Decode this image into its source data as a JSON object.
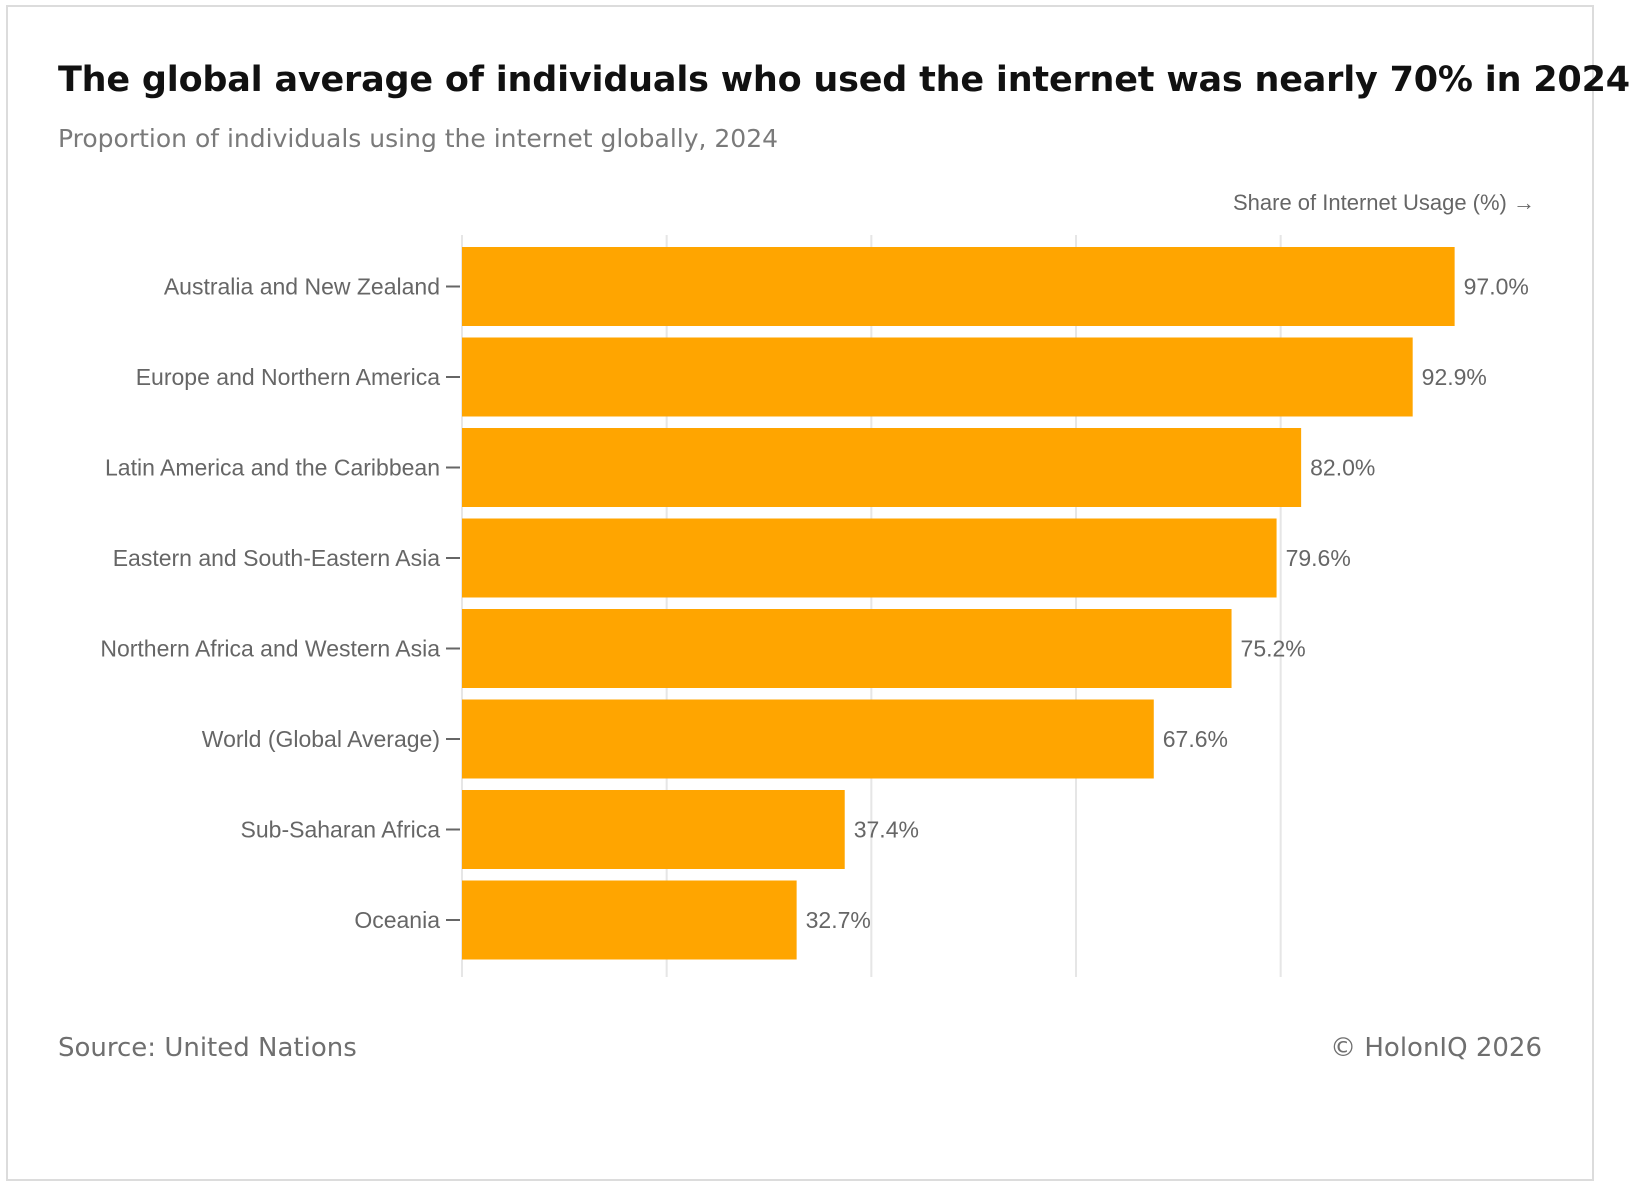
{
  "title": "The global average of individuals who used the internet was nearly 70% in 2024",
  "subtitle": "Proportion of individuals using the internet globally, 2024",
  "source": "Source: United Nations",
  "copyright": "© HolonIQ 2026",
  "colors": {
    "bar": "#FFA500",
    "grid": "#e6e6e6",
    "label": "#666666",
    "tick": "#666666"
  },
  "chart_data": {
    "type": "bar",
    "orientation": "horizontal",
    "xlabel": "Share of Internet Usage (%) →",
    "xlim": [
      0,
      120
    ],
    "grid": true,
    "categories": [
      "Australia and New Zealand",
      "Europe and Northern America",
      "Latin America and the Caribbean",
      "Eastern and South-Eastern Asia",
      "Northern Africa and Western Asia",
      "World (Global Average)",
      "Sub-Saharan Africa",
      "Oceania"
    ],
    "values": [
      97.0,
      92.9,
      82.0,
      79.6,
      75.2,
      67.6,
      37.4,
      32.7
    ],
    "value_labels": [
      "97.0%",
      "92.9%",
      "82.0%",
      "79.6%",
      "75.2%",
      "67.6%",
      "37.4%",
      "32.7%"
    ]
  }
}
